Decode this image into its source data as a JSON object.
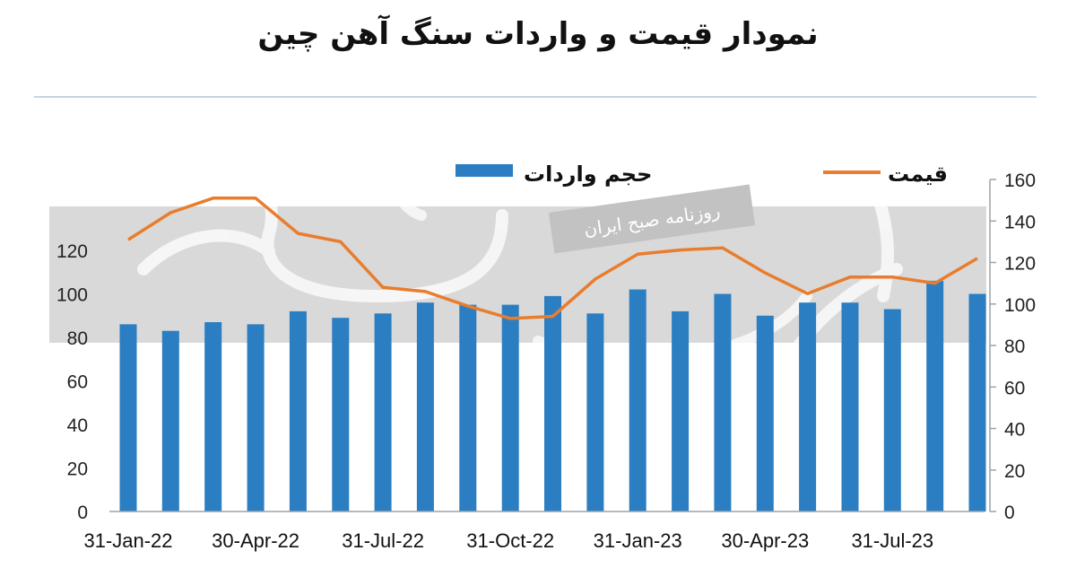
{
  "title": "نمودار قیمت و واردات سنگ آهن چین",
  "watermark": "روزنامه صبح ایران",
  "chart_data": {
    "type": "bar",
    "title": "نمودار قیمت و واردات سنگ آهن چین",
    "x": [
      "Jan-22",
      "Feb-22",
      "Mar-22",
      "Apr-22",
      "May-22",
      "Jun-22",
      "Jul-22",
      "Aug-22",
      "Sep-22",
      "Oct-22",
      "Nov-22",
      "Dec-22",
      "Jan-23",
      "Feb-23",
      "Mar-23",
      "Apr-23",
      "May-23",
      "Jun-23",
      "Jul-23",
      "Aug-23",
      "Sep-23"
    ],
    "x_tick_labels": [
      "31-Jan-22",
      "30-Apr-22",
      "31-Jul-22",
      "31-Oct-22",
      "31-Jan-23",
      "30-Apr-23",
      "31-Jul-23"
    ],
    "x_tick_index": [
      0,
      3,
      6,
      9,
      12,
      15,
      18
    ],
    "series": [
      {
        "name": "حجم واردات",
        "type": "bar",
        "axis": "left",
        "color": "#2b7ec1",
        "values": [
          86,
          83,
          87,
          86,
          92,
          89,
          91,
          96,
          95,
          95,
          99,
          91,
          102,
          92,
          100,
          90,
          96,
          96,
          93,
          106,
          100
        ]
      },
      {
        "name": "قیمت",
        "type": "line",
        "axis": "right",
        "color": "#e87d2e",
        "values": [
          131,
          144,
          151,
          151,
          134,
          130,
          108,
          106,
          99,
          93,
          94,
          112,
          124,
          126,
          127,
          115,
          105,
          113,
          113,
          110,
          122
        ]
      }
    ],
    "y_left": {
      "ticks": [
        0,
        20,
        40,
        60,
        80,
        100,
        120
      ],
      "ylim": [
        0,
        120
      ]
    },
    "y_right": {
      "ticks": [
        0,
        20,
        40,
        60,
        80,
        100,
        120,
        140,
        160
      ],
      "ylim": [
        0,
        160
      ]
    },
    "legend_placement": "top",
    "grid": false
  }
}
